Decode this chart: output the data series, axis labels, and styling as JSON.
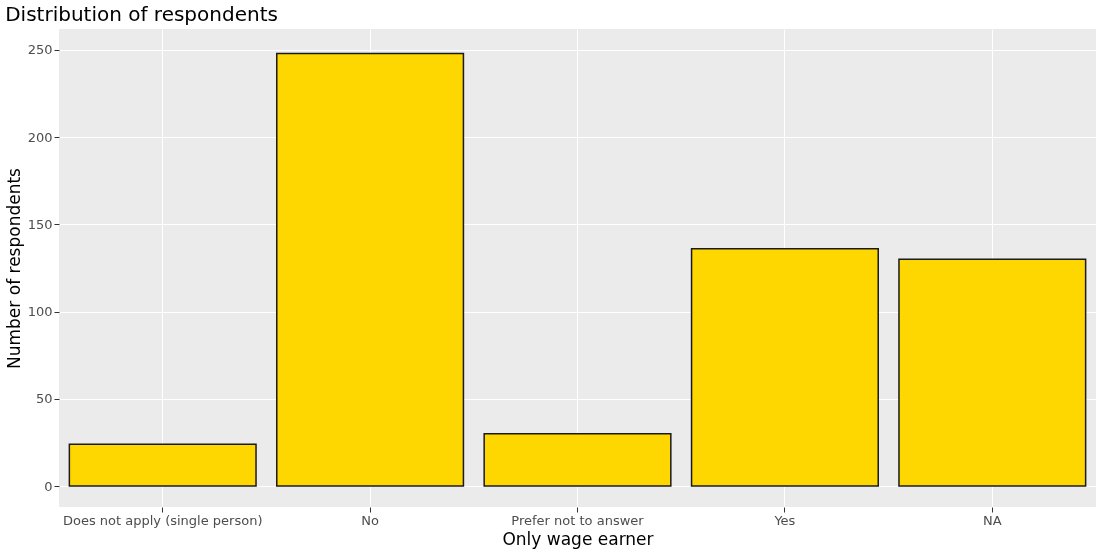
{
  "chart_data": {
    "type": "bar",
    "title": "Distribution of respondents",
    "xlabel": "Only wage earner",
    "ylabel": "Number of respondents",
    "categories": [
      "Does not apply (single person)",
      "No",
      "Prefer not to answer",
      "Yes",
      "NA"
    ],
    "values": [
      24,
      248,
      30,
      136,
      130
    ],
    "color": "#ffd700",
    "ylim": [
      -12,
      262
    ],
    "yticks": [
      0,
      50,
      100,
      150,
      200,
      250
    ],
    "grid": true
  }
}
